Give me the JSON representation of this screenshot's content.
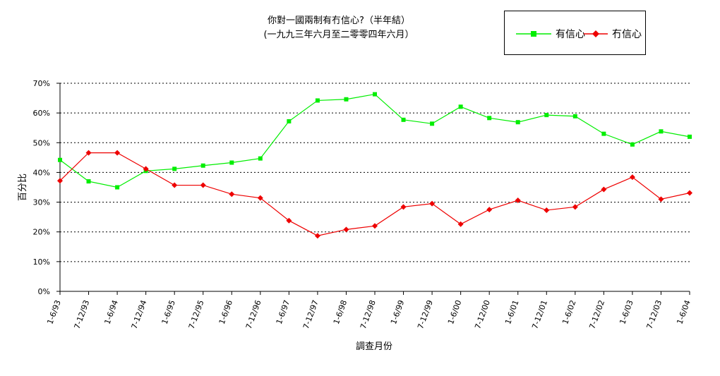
{
  "chart_data": {
    "type": "line",
    "title": "你對一國兩制有冇信心?（半年結）",
    "subtitle": "(一九九三年六月至二零零四年六月）",
    "xlabel": "調查月份",
    "ylabel": "百分比",
    "ylim": [
      0,
      70
    ],
    "yticks": [
      "0%",
      "10%",
      "20%",
      "30%",
      "40%",
      "50%",
      "60%",
      "70%"
    ],
    "grid": true,
    "legend_position": "top-right",
    "categories": [
      "1-6/93",
      "7-12/93",
      "1-6/94",
      "7-12/94",
      "1-6/95",
      "7-12/95",
      "1-6/96",
      "7-12/96",
      "1-6/97",
      "7-12/97",
      "1-6/98",
      "7-12/98",
      "1-6/99",
      "7-12/99",
      "1-6/00",
      "7-12/00",
      "1-6/01",
      "7-12/01",
      "1-6/02",
      "7-12/02",
      "1-6/03",
      "7-12/03",
      "1-6/04"
    ],
    "series": [
      {
        "name": "有信心",
        "color": "#00ee00",
        "marker": "square",
        "values": [
          44.2,
          37.0,
          35.0,
          40.5,
          41.2,
          42.3,
          43.3,
          44.7,
          57.2,
          64.2,
          64.6,
          66.3,
          57.7,
          56.4,
          62.1,
          58.3,
          56.9,
          59.3,
          58.9,
          53.0,
          49.4,
          53.8,
          52.0
        ]
      },
      {
        "name": "冇信心",
        "color": "#ee0000",
        "marker": "diamond",
        "values": [
          37.2,
          46.6,
          46.6,
          41.2,
          35.7,
          35.7,
          32.7,
          31.4,
          23.8,
          18.7,
          20.8,
          22.0,
          28.4,
          29.5,
          22.6,
          27.5,
          30.6,
          27.3,
          28.4,
          34.3,
          38.4,
          31.0,
          33.1
        ]
      }
    ]
  }
}
